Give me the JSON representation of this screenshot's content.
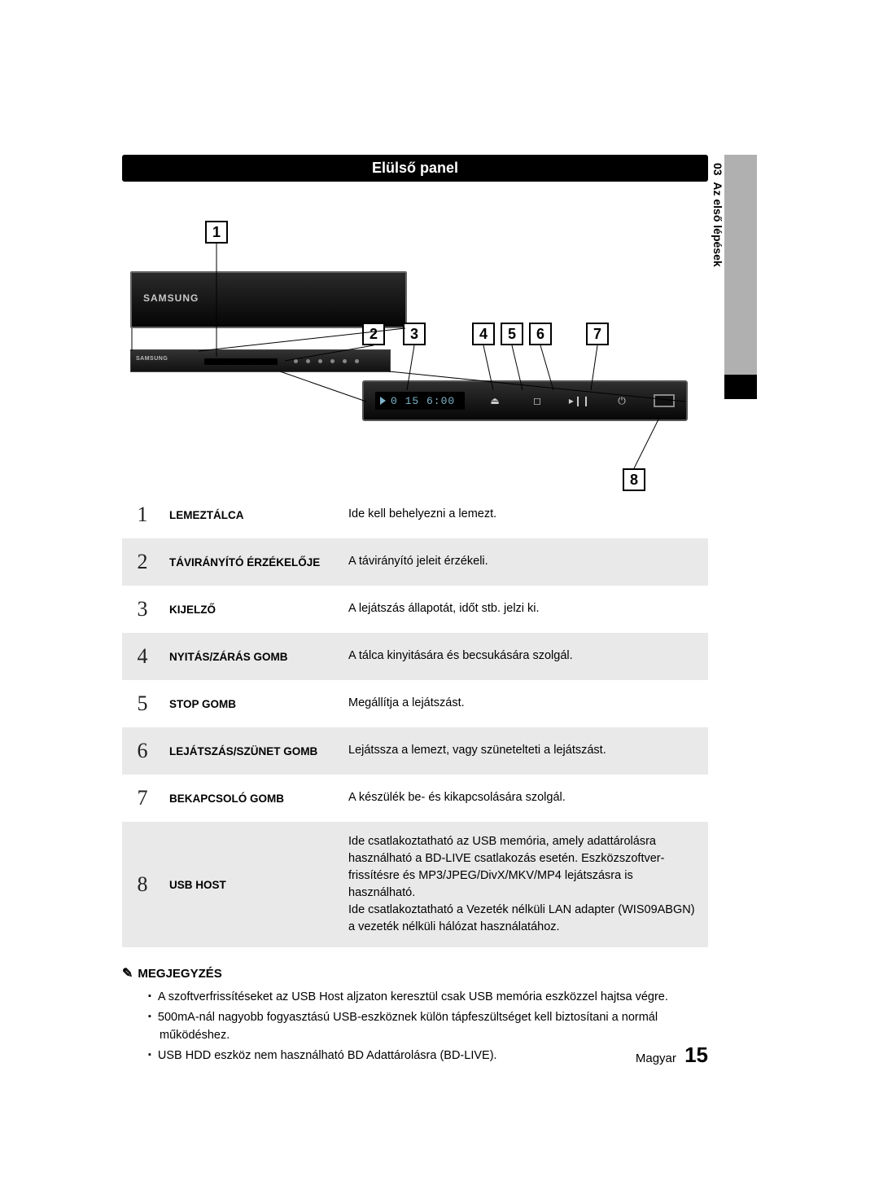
{
  "header": {
    "title": "Elülső panel"
  },
  "sidebar": {
    "chapter": "03",
    "label": "Az első lépések"
  },
  "diagram": {
    "display_time": "0 15 6:00",
    "brand": "SAMSUNG",
    "callouts": [
      "1",
      "2",
      "3",
      "4",
      "5",
      "6",
      "7",
      "8"
    ]
  },
  "table": {
    "rows": [
      {
        "num": "1",
        "label": "LEMEZTÁLCA",
        "desc": "Ide kell behelyezni a lemezt."
      },
      {
        "num": "2",
        "label": "TÁVIRÁNYÍTÓ ÉRZÉKELŐJE",
        "desc": "A távirányító jeleit érzékeli."
      },
      {
        "num": "3",
        "label": "KIJELZŐ",
        "desc": "A lejátszás állapotát, időt stb. jelzi ki."
      },
      {
        "num": "4",
        "label": "NYITÁS/ZÁRÁS GOMB",
        "desc": "A tálca kinyitására és becsukására szolgál."
      },
      {
        "num": "5",
        "label": "STOP GOMB",
        "desc": "Megállítja a lejátszást."
      },
      {
        "num": "6",
        "label": "LEJÁTSZÁS/SZÜNET GOMB",
        "desc": "Lejátssza a lemezt, vagy szünetelteti a lejátszást."
      },
      {
        "num": "7",
        "label": "BEKAPCSOLÓ GOMB",
        "desc": "A készülék be- és kikapcsolására szolgál."
      },
      {
        "num": "8",
        "label": "USB HOST",
        "desc": "Ide csatlakoztatható az USB memória, amely adattárolásra használható a BD-LIVE csatlakozás esetén. Eszközszoftver-frissítésre és MP3/JPEG/DivX/MKV/MP4 lejátszásra is használható.\nIde csatlakoztatható a Vezeték nélküli LAN adapter (WIS09ABGN) a vezeték nélküli hálózat használatához."
      }
    ]
  },
  "notes": {
    "heading": "MEGJEGYZÉS",
    "items": [
      "A szoftverfrissítéseket az USB Host aljzaton keresztül csak USB memória eszközzel hajtsa végre.",
      "500mA-nál nagyobb fogyasztású USB-eszköznek külön tápfeszültséget kell biztosítani a normál működéshez.",
      "USB HDD eszköz nem használható BD Adattárolásra (BD-LIVE)."
    ]
  },
  "footer": {
    "lang": "Magyar",
    "page": "15"
  },
  "colors": {
    "header_bg": "#000000",
    "header_fg": "#ffffff",
    "row_alt_bg": "#e9e9e9",
    "display_fg": "#7fb3c9",
    "sidebar_bg": "#b0b0b0"
  }
}
